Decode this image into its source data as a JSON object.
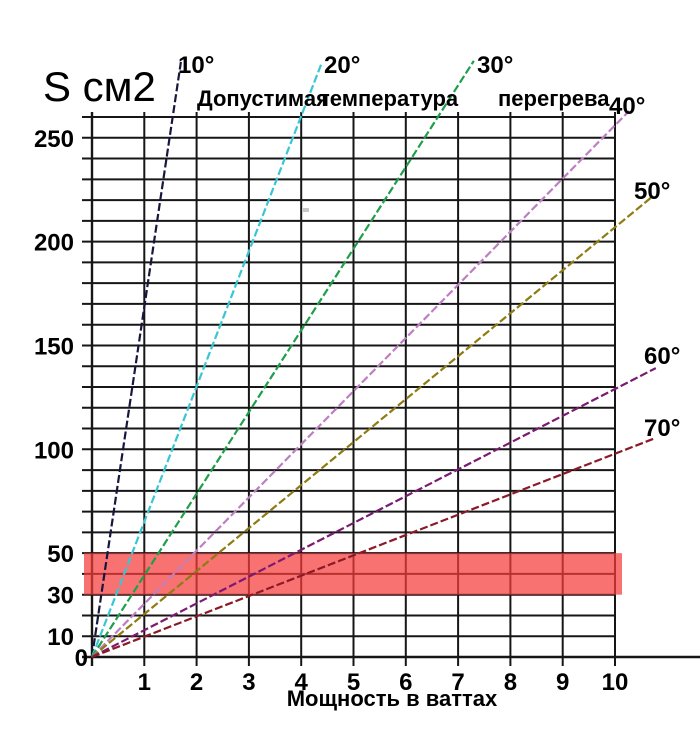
{
  "chart_data": {
    "type": "line",
    "title": "Допустимая температура перегрева",
    "title_words": [
      "Допустимая",
      "температура",
      "перегрева"
    ],
    "ylabel": "S см2",
    "xlabel": "Мощность в ваттах",
    "xlim": [
      0,
      10
    ],
    "ylim": [
      0,
      260
    ],
    "grid": {
      "x_step": 1,
      "y_step": 10,
      "color": "#161616"
    },
    "x_ticks": [
      1,
      2,
      3,
      4,
      5,
      6,
      7,
      8,
      9,
      10
    ],
    "y_ticks_labeled": [
      250,
      200,
      150,
      100,
      50,
      30,
      10,
      0
    ],
    "legend_position": "labels-at-line-ends",
    "band": {
      "y0": 30,
      "y1": 50,
      "color": "#f53b3b",
      "opacity": 0.72
    },
    "series": [
      {
        "label": "10°",
        "color": "#16163e",
        "slope_cm2_per_watt": 168,
        "points": [
          [
            0,
            0
          ],
          [
            1.7,
            286.5
          ]
        ]
      },
      {
        "label": "20°",
        "color": "#38c6d2",
        "slope_cm2_per_watt": 65,
        "points": [
          [
            0,
            0
          ],
          [
            4.4,
            286.5
          ]
        ]
      },
      {
        "label": "30°",
        "color": "#1f9e4b",
        "slope_cm2_per_watt": 39,
        "points": [
          [
            0,
            0
          ],
          [
            7.3,
            287.0
          ]
        ]
      },
      {
        "label": "40°",
        "color": "#bd7ec2",
        "slope_cm2_per_watt": 26,
        "points": [
          [
            0,
            0
          ],
          [
            10.27,
            262.9
          ]
        ]
      },
      {
        "label": "50°",
        "color": "#8e7b12",
        "slope_cm2_per_watt": 21,
        "points": [
          [
            0,
            0
          ],
          [
            10.73,
            222.0
          ]
        ]
      },
      {
        "label": "60°",
        "color": "#7a1a70",
        "slope_cm2_per_watt": 13,
        "points": [
          [
            0,
            0
          ],
          [
            10.78,
            139.1
          ]
        ]
      },
      {
        "label": "70°",
        "color": "#8c1a26",
        "slope_cm2_per_watt": 10,
        "points": [
          [
            0,
            0
          ],
          [
            10.73,
            105.0
          ]
        ]
      }
    ]
  }
}
